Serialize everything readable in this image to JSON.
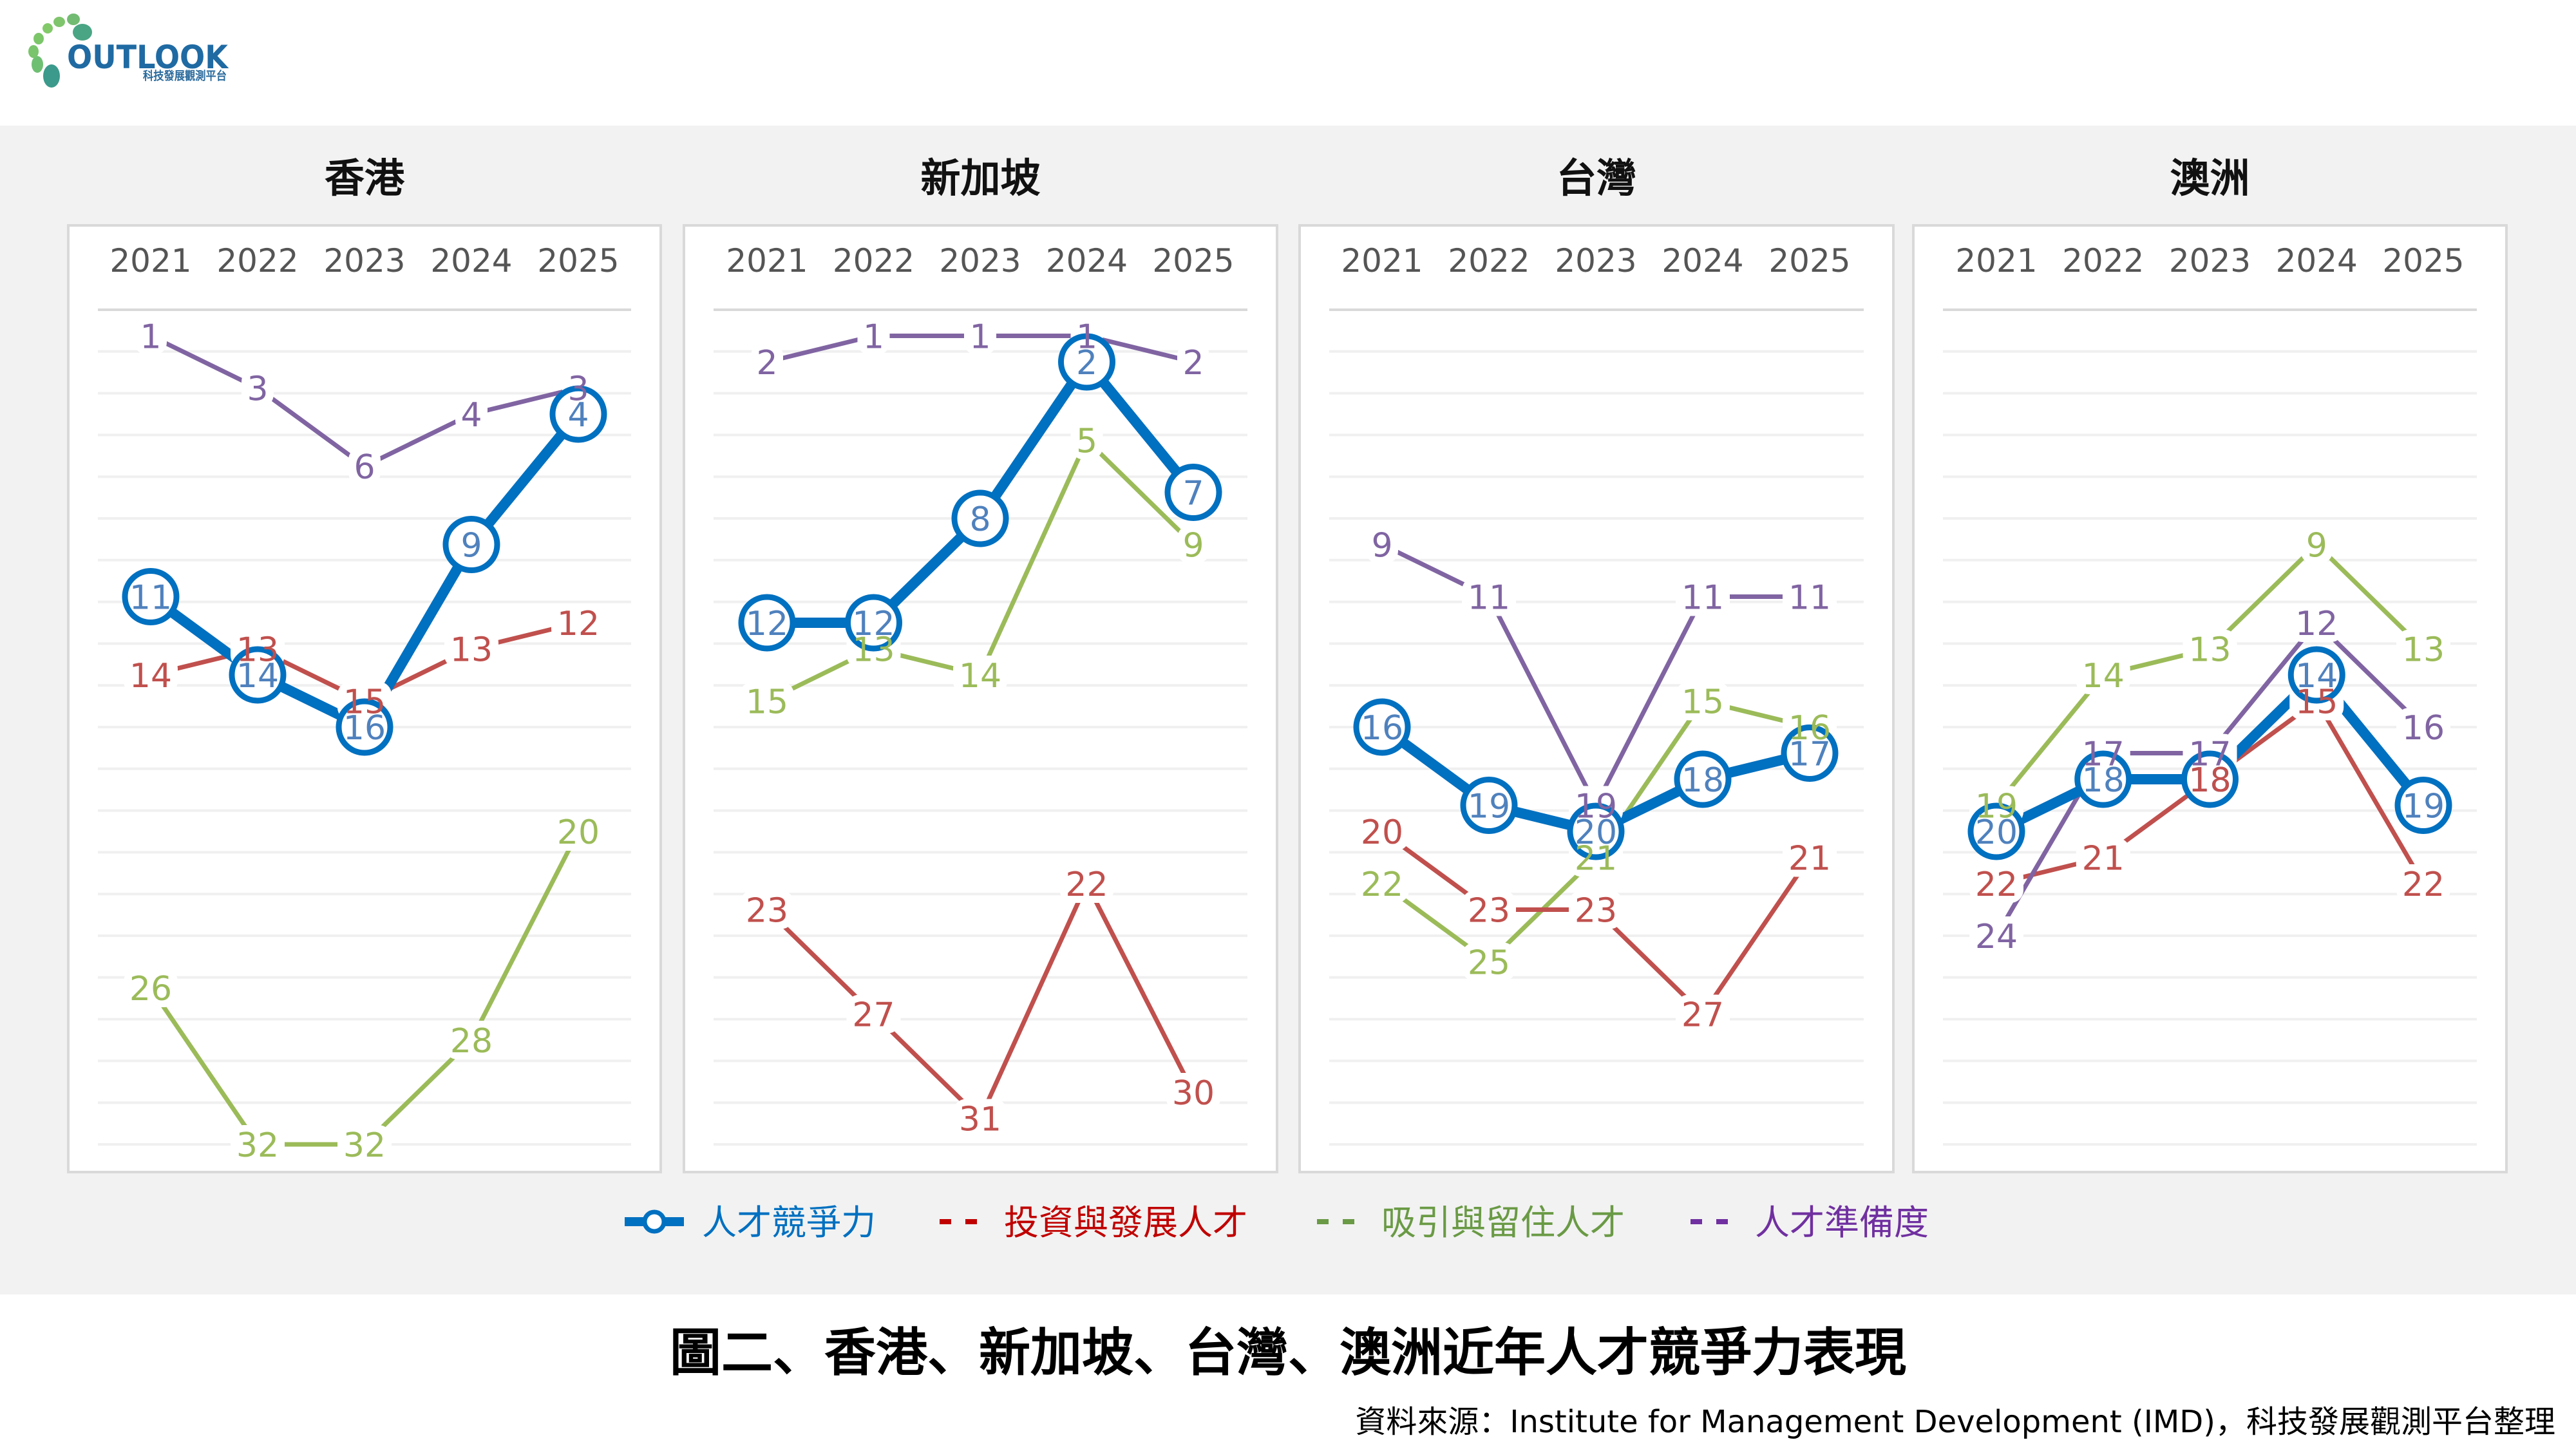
{
  "logo": {
    "word": "OUTLOOK",
    "subtitle": "科技發展觀測平台",
    "colors": {
      "blue": "#1f6aa3",
      "green": "#7cc26a",
      "teal": "#3c9a8a"
    }
  },
  "figure_title": "圖二、香港、新加坡、台灣、澳洲近年人才競爭力表現",
  "source": "資料來源：Institute for Management Development (IMD)，科技發展觀測平台整理",
  "legend": [
    {
      "key": "talent",
      "label": "人才競爭力",
      "style": "thick-line-circle"
    },
    {
      "key": "investment",
      "label": "投資與發展人才",
      "style": "dash"
    },
    {
      "key": "appeal",
      "label": "吸引與留住人才",
      "style": "dash"
    },
    {
      "key": "readiness",
      "label": "人才準備度",
      "style": "dash"
    }
  ],
  "colors": {
    "talent_line": "#0070C0",
    "talent_label": "#4F81BD",
    "investment": "#C0504D",
    "appeal": "#9BBB59",
    "readiness": "#8064A2",
    "legend_talent": "#0070C0",
    "legend_investment": "#C00000",
    "legend_appeal": "#6A9A45",
    "legend_readiness": "#7030A0",
    "background_band": "#F2F2F2",
    "panel_border": "#D9D9D9",
    "gridline": "#F0F0F0"
  },
  "chart_data": [
    {
      "type": "line",
      "title": "香港",
      "categories": [
        "2021",
        "2022",
        "2023",
        "2024",
        "2025"
      ],
      "y_axis": {
        "inverted": true,
        "range": [
          0,
          32
        ],
        "grid": true
      },
      "series": [
        {
          "key": "talent",
          "name": "人才競爭力",
          "values": [
            11,
            14,
            16,
            9,
            4
          ]
        },
        {
          "key": "investment",
          "name": "投資與發展人才",
          "values": [
            14,
            13,
            15,
            13,
            12
          ]
        },
        {
          "key": "appeal",
          "name": "吸引與留住人才",
          "values": [
            26,
            32,
            32,
            28,
            20
          ]
        },
        {
          "key": "readiness",
          "name": "人才準備度",
          "values": [
            1,
            3,
            6,
            4,
            3
          ]
        }
      ]
    },
    {
      "type": "line",
      "title": "新加坡",
      "categories": [
        "2021",
        "2022",
        "2023",
        "2024",
        "2025"
      ],
      "y_axis": {
        "inverted": true,
        "range": [
          0,
          32
        ],
        "grid": true
      },
      "series": [
        {
          "key": "talent",
          "name": "人才競爭力",
          "values": [
            12,
            12,
            8,
            2,
            7
          ]
        },
        {
          "key": "investment",
          "name": "投資與發展人才",
          "values": [
            23,
            27,
            31,
            22,
            30
          ]
        },
        {
          "key": "appeal",
          "name": "吸引與留住人才",
          "values": [
            15,
            13,
            14,
            5,
            9
          ]
        },
        {
          "key": "readiness",
          "name": "人才準備度",
          "values": [
            2,
            1,
            1,
            1,
            2
          ]
        }
      ]
    },
    {
      "type": "line",
      "title": "台灣",
      "categories": [
        "2021",
        "2022",
        "2023",
        "2024",
        "2025"
      ],
      "y_axis": {
        "inverted": true,
        "range": [
          0,
          32
        ],
        "grid": true
      },
      "series": [
        {
          "key": "talent",
          "name": "人才競爭力",
          "values": [
            16,
            19,
            20,
            18,
            17
          ]
        },
        {
          "key": "investment",
          "name": "投資與發展人才",
          "values": [
            20,
            23,
            23,
            27,
            21
          ]
        },
        {
          "key": "appeal",
          "name": "吸引與留住人才",
          "values": [
            22,
            25,
            21,
            15,
            16
          ]
        },
        {
          "key": "readiness",
          "name": "人才準備度",
          "values": [
            9,
            11,
            19,
            11,
            11
          ]
        }
      ]
    },
    {
      "type": "line",
      "title": "澳洲",
      "categories": [
        "2021",
        "2022",
        "2023",
        "2024",
        "2025"
      ],
      "y_axis": {
        "inverted": true,
        "range": [
          0,
          32
        ],
        "grid": true
      },
      "series": [
        {
          "key": "talent",
          "name": "人才競爭力",
          "values": [
            20,
            18,
            18,
            14,
            19
          ]
        },
        {
          "key": "investment",
          "name": "投資與發展人才",
          "values": [
            22,
            21,
            18,
            15,
            22
          ]
        },
        {
          "key": "appeal",
          "name": "吸引與留住人才",
          "values": [
            19,
            14,
            13,
            9,
            13
          ]
        },
        {
          "key": "readiness",
          "name": "人才準備度",
          "values": [
            24,
            17,
            17,
            12,
            16
          ]
        }
      ]
    }
  ]
}
